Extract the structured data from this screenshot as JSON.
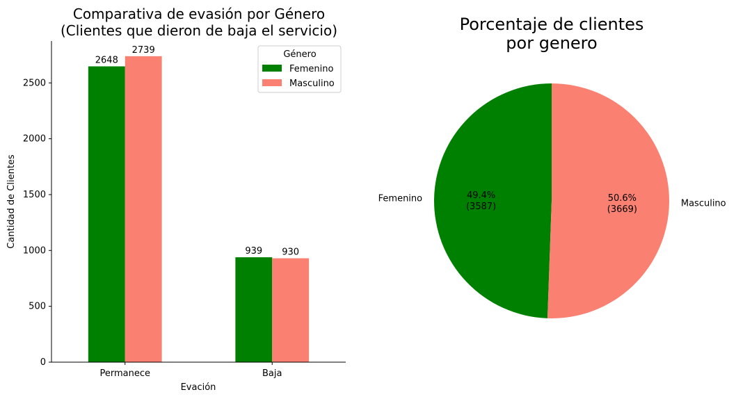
{
  "chart_data": [
    {
      "type": "bar",
      "title_line1": "Comparativa de evasión por Género",
      "title_line2": "(Clientes que dieron de baja el servicio)",
      "xlabel": "Evación",
      "ylabel": "Cantidad de Clientes",
      "categories": [
        "Permanece",
        "Baja"
      ],
      "series": [
        {
          "name": "Femenino",
          "color": "#008000",
          "values": [
            2648,
            939
          ]
        },
        {
          "name": "Masculino",
          "color": "#fa8072",
          "values": [
            2739,
            930
          ]
        }
      ],
      "ylim": [
        0,
        2875
      ],
      "yticks": [
        0,
        500,
        1000,
        1500,
        2000,
        2500
      ],
      "legend": {
        "title": "Género",
        "position": "top-right"
      },
      "data_labels": true,
      "grid": false
    },
    {
      "type": "pie",
      "title_line1": "Porcentaje de clientes",
      "title_line2": "por genero",
      "slices": [
        {
          "label": "Femenino",
          "value": 3587,
          "percent": "49.4%",
          "count_label": "(3587)",
          "color": "#008000"
        },
        {
          "label": "Masculino",
          "value": 3669,
          "percent": "50.6%",
          "count_label": "(3669)",
          "color": "#fa8072"
        }
      ]
    }
  ]
}
